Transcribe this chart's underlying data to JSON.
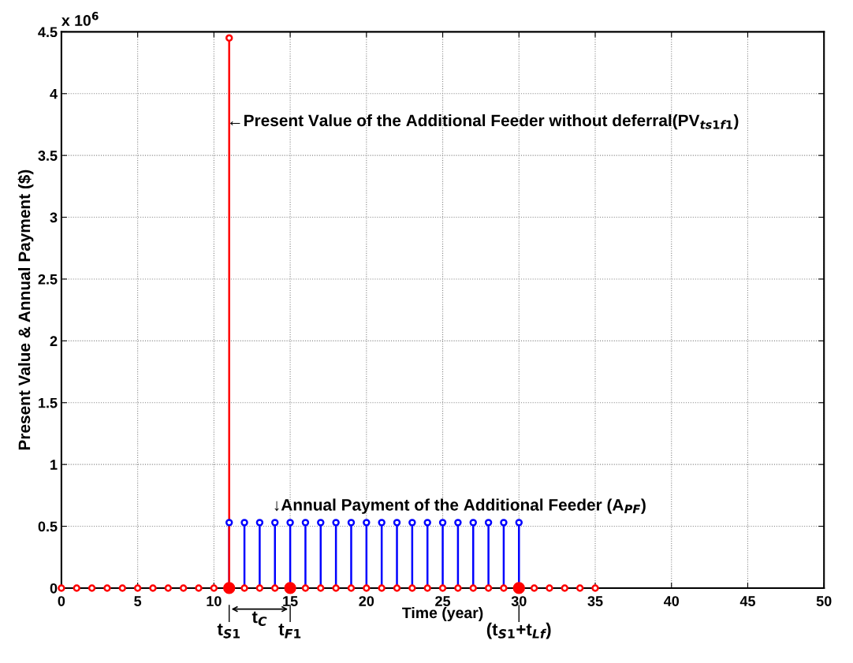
{
  "chart_data": {
    "type": "lollipop",
    "xlabel": "Time (year)",
    "ylabel": "Present Value & Annual Payment ($)",
    "xlim": [
      0,
      50
    ],
    "xticks": [
      0,
      5,
      10,
      15,
      20,
      25,
      30,
      35,
      40,
      45,
      50
    ],
    "ylim": [
      0,
      4.5
    ],
    "yticks": [
      0,
      0.5,
      1,
      1.5,
      2,
      2.5,
      3,
      3.5,
      4,
      4.5
    ],
    "grid": true,
    "marker": "circle",
    "line_style": "solid",
    "series": [
      {
        "color": "#0000ff",
        "x": [
          11,
          12,
          13,
          14,
          15,
          16,
          17,
          18,
          19,
          20,
          21,
          22,
          23,
          24,
          25,
          26,
          27,
          28,
          29,
          30
        ],
        "values": [
          0.53,
          0.53,
          0.53,
          0.53,
          0.53,
          0.53,
          0.53,
          0.53,
          0.53,
          0.53,
          0.53,
          0.53,
          0.53,
          0.53,
          0.53,
          0.53,
          0.53,
          0.53,
          0.53,
          0.53
        ]
      },
      {
        "color": "#ff0000",
        "x": [
          0,
          1,
          2,
          3,
          4,
          5,
          6,
          7,
          8,
          9,
          10,
          11,
          12,
          13,
          14,
          15,
          16,
          17,
          18,
          19,
          20,
          21,
          22,
          23,
          24,
          25,
          26,
          27,
          28,
          29,
          30,
          31,
          32,
          33,
          34,
          35
        ],
        "values": [
          0,
          0,
          0,
          0,
          0,
          0,
          0,
          0,
          0,
          0,
          0,
          4.45,
          0,
          0,
          0,
          null,
          0,
          0,
          0,
          0,
          0,
          0,
          0,
          0,
          0,
          0,
          0,
          0,
          0,
          0,
          null,
          0,
          0,
          0,
          0,
          0
        ]
      },
      {
        "type": "scatter",
        "color": "#ff0000",
        "x": [
          11,
          15,
          30
        ],
        "values": [
          0,
          0,
          0
        ]
      }
    ],
    "annotations": [
      "x 10$^{6}$",
      "←Present Value of the Additional Feeder without deferral(PV$_{ts1f1}$)",
      "↓Annual Payment of the Additional Feeder (A$_{PF}$)",
      {
        "text": "t$_{S1}$",
        "x": 11,
        "y": 0
      },
      {
        "text": "t$_{F1}$",
        "x": 15,
        "y": 0
      },
      {
        "text": "(t$_{S1}$+t$_{Lf}$)",
        "x": 30,
        "y": 0
      },
      "t$_{C}$"
    ]
  }
}
